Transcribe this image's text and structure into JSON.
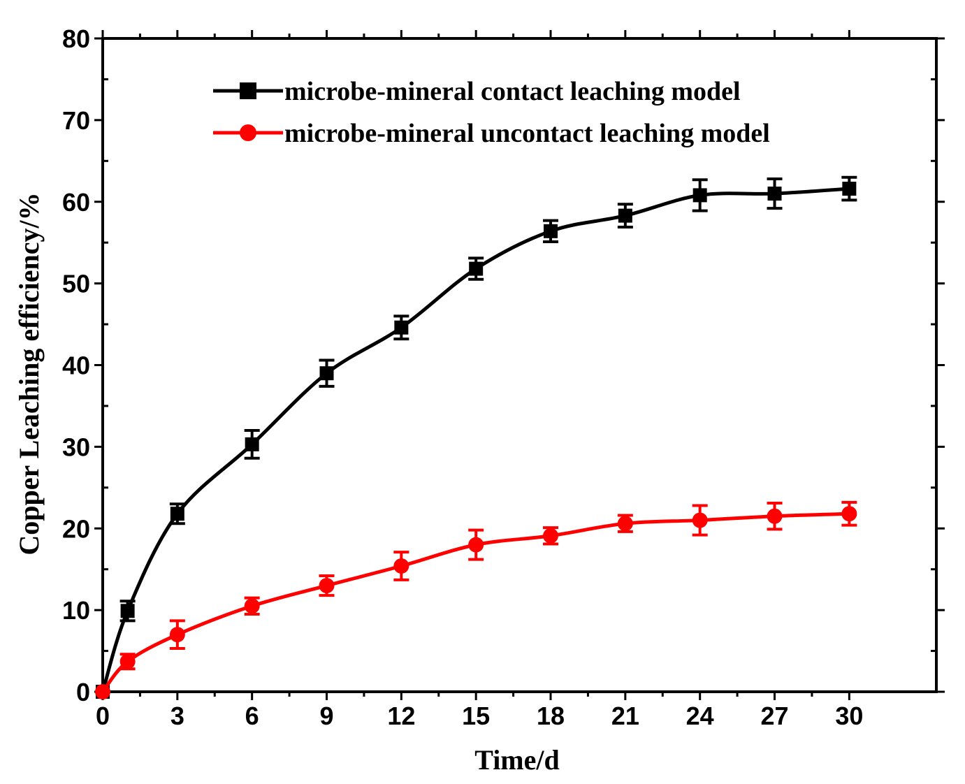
{
  "chart_data": {
    "type": "line",
    "xlabel": "Time/d",
    "ylabel": "Copper Leaching efficiency/%",
    "xlim": [
      0,
      33.5
    ],
    "ylim": [
      0,
      80
    ],
    "xticks": [
      0,
      3,
      6,
      9,
      12,
      15,
      18,
      21,
      24,
      27,
      30
    ],
    "yticks": [
      0,
      10,
      20,
      30,
      40,
      50,
      60,
      70,
      80
    ],
    "legend_position": "top",
    "grid": false,
    "series": [
      {
        "name": "microbe-mineral contact leaching model",
        "color": "#000000",
        "marker": "square",
        "x": [
          0,
          1,
          3,
          6,
          9,
          12,
          15,
          18,
          21,
          24,
          27,
          30
        ],
        "y": [
          0,
          9.9,
          21.8,
          30.3,
          39.0,
          44.6,
          51.8,
          56.4,
          58.3,
          60.8,
          61.0,
          61.6
        ],
        "err": [
          0,
          1.2,
          1.2,
          1.7,
          1.6,
          1.4,
          1.3,
          1.3,
          1.4,
          1.9,
          1.8,
          1.4
        ]
      },
      {
        "name": "microbe-mineral uncontact leaching model",
        "color": "#ff0000",
        "marker": "circle",
        "x": [
          0,
          1,
          3,
          6,
          9,
          12,
          15,
          18,
          21,
          24,
          27,
          30
        ],
        "y": [
          0,
          3.7,
          7.0,
          10.5,
          13.0,
          15.4,
          18.0,
          19.1,
          20.6,
          21.0,
          21.5,
          21.8
        ],
        "err": [
          0,
          0.9,
          1.7,
          1.0,
          1.2,
          1.7,
          1.8,
          1.0,
          1.0,
          1.8,
          1.6,
          1.4
        ]
      }
    ]
  }
}
